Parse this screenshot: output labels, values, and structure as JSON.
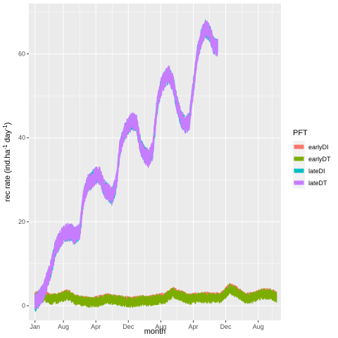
{
  "chart_data": {
    "type": "line",
    "xlabel": "month",
    "ylabel": {
      "main": "rec rate (ind.ha",
      "exp1": "-1",
      "mid": " day",
      "exp2": "-1",
      "close": ")"
    },
    "x_ticks": [
      "Jan",
      "Aug",
      "Apr",
      "Dec",
      "Aug",
      "Apr",
      "Dec",
      "Aug"
    ],
    "x_tick_months": [
      0,
      7,
      15,
      23,
      31,
      39,
      47,
      55
    ],
    "xlim_months": [
      -1.5,
      60.6
    ],
    "y_ticks": [
      "0",
      "20",
      "40",
      "60"
    ],
    "y_tick_values": [
      0,
      20,
      40,
      60
    ],
    "ylim": [
      -3.5,
      72
    ],
    "grid": true,
    "legend": {
      "title": "PFT",
      "position": "right"
    },
    "series": [
      {
        "name": "earlyDI",
        "color": "#F8766D",
        "band": 1.4,
        "points": [
          [
            0,
            2.2
          ],
          [
            2,
            2.8
          ],
          [
            4,
            1.8
          ],
          [
            6,
            2.0
          ],
          [
            8,
            2.9
          ],
          [
            10,
            1.6
          ],
          [
            12,
            1.2
          ],
          [
            14,
            1.0
          ],
          [
            16,
            1.4
          ],
          [
            18,
            1.9
          ],
          [
            20,
            1.5
          ],
          [
            22,
            1.2
          ],
          [
            24,
            1.0
          ],
          [
            26,
            1.5
          ],
          [
            28,
            1.3
          ],
          [
            30,
            1.8
          ],
          [
            32,
            2.0
          ],
          [
            34,
            3.4
          ],
          [
            36,
            2.6
          ],
          [
            38,
            1.8
          ],
          [
            40,
            2.1
          ],
          [
            42,
            2.2
          ],
          [
            44,
            2.0
          ],
          [
            46,
            2.3
          ],
          [
            48,
            4.4
          ],
          [
            50,
            3.4
          ],
          [
            52,
            2.0
          ],
          [
            54,
            2.3
          ],
          [
            56,
            3.2
          ],
          [
            58,
            3.0
          ],
          [
            59.5,
            2.4
          ]
        ]
      },
      {
        "name": "earlyDT",
        "color": "#7CAE00",
        "band": 1.6,
        "points": [
          [
            0,
            1.8
          ],
          [
            2,
            2.4
          ],
          [
            4,
            1.5
          ],
          [
            6,
            1.8
          ],
          [
            8,
            2.6
          ],
          [
            10,
            1.4
          ],
          [
            12,
            1.0
          ],
          [
            14,
            0.8
          ],
          [
            16,
            1.1
          ],
          [
            18,
            1.6
          ],
          [
            20,
            1.3
          ],
          [
            22,
            1.0
          ],
          [
            24,
            0.8
          ],
          [
            26,
            1.2
          ],
          [
            28,
            1.1
          ],
          [
            30,
            1.5
          ],
          [
            32,
            1.7
          ],
          [
            34,
            3.0
          ],
          [
            36,
            2.3
          ],
          [
            38,
            1.5
          ],
          [
            40,
            1.8
          ],
          [
            42,
            1.9
          ],
          [
            44,
            1.7
          ],
          [
            46,
            2.0
          ],
          [
            48,
            4.0
          ],
          [
            50,
            3.0
          ],
          [
            52,
            1.7
          ],
          [
            54,
            2.0
          ],
          [
            56,
            2.8
          ],
          [
            58,
            2.7
          ],
          [
            59.5,
            2.1
          ]
        ]
      },
      {
        "name": "lateDI",
        "color": "#00BFC4",
        "band": 2.6,
        "points": [
          [
            0,
            0.5
          ],
          [
            2,
            3.0
          ],
          [
            4,
            9.0
          ],
          [
            5,
            13.5
          ],
          [
            6,
            15.5
          ],
          [
            7,
            17.0
          ],
          [
            8,
            17.5
          ],
          [
            9,
            17.3
          ],
          [
            10,
            16.5
          ],
          [
            11,
            17.5
          ],
          [
            12,
            26.0
          ],
          [
            13,
            29.0
          ],
          [
            14,
            30.0
          ],
          [
            15,
            31.0
          ],
          [
            16,
            31.0
          ],
          [
            17,
            28.0
          ],
          [
            18,
            27.0
          ],
          [
            19,
            26.0
          ],
          [
            20,
            29.0
          ],
          [
            21,
            38.0
          ],
          [
            22,
            41.0
          ],
          [
            23,
            43.0
          ],
          [
            24,
            44.0
          ],
          [
            25,
            43.5
          ],
          [
            26,
            38.0
          ],
          [
            27,
            36.0
          ],
          [
            28,
            35.0
          ],
          [
            29,
            37.0
          ],
          [
            30,
            47.0
          ],
          [
            31,
            52.0
          ],
          [
            32,
            54.0
          ],
          [
            33,
            55.0
          ],
          [
            34,
            53.0
          ],
          [
            35,
            48.0
          ],
          [
            36,
            44.5
          ],
          [
            37,
            43.0
          ],
          [
            38,
            44.0
          ],
          [
            39,
            52.0
          ],
          [
            40,
            60.0
          ],
          [
            41,
            64.0
          ],
          [
            42,
            66.0
          ],
          [
            43,
            65.0
          ],
          [
            44,
            62.0
          ],
          [
            45,
            61.5
          ]
        ]
      },
      {
        "name": "lateDT",
        "color": "#C77CFF",
        "band": 2.8,
        "points": [
          [
            0,
            0.5
          ],
          [
            2,
            3.0
          ],
          [
            4,
            9.0
          ],
          [
            5,
            13.5
          ],
          [
            6,
            15.5
          ],
          [
            7,
            17.0
          ],
          [
            8,
            17.5
          ],
          [
            9,
            17.3
          ],
          [
            10,
            16.5
          ],
          [
            11,
            17.5
          ],
          [
            12,
            26.0
          ],
          [
            13,
            29.0
          ],
          [
            14,
            30.0
          ],
          [
            15,
            31.0
          ],
          [
            16,
            31.0
          ],
          [
            17,
            28.0
          ],
          [
            18,
            27.0
          ],
          [
            19,
            26.0
          ],
          [
            20,
            29.0
          ],
          [
            21,
            38.0
          ],
          [
            22,
            41.0
          ],
          [
            23,
            43.0
          ],
          [
            24,
            44.0
          ],
          [
            25,
            43.5
          ],
          [
            26,
            38.0
          ],
          [
            27,
            36.0
          ],
          [
            28,
            35.0
          ],
          [
            29,
            37.0
          ],
          [
            30,
            47.0
          ],
          [
            31,
            52.0
          ],
          [
            32,
            54.0
          ],
          [
            33,
            55.0
          ],
          [
            34,
            53.0
          ],
          [
            35,
            48.0
          ],
          [
            36,
            44.5
          ],
          [
            37,
            43.0
          ],
          [
            38,
            44.0
          ],
          [
            39,
            52.0
          ],
          [
            40,
            60.0
          ],
          [
            41,
            64.0
          ],
          [
            42,
            66.0
          ],
          [
            43,
            65.0
          ],
          [
            44,
            62.0
          ],
          [
            45,
            61.5
          ]
        ]
      }
    ]
  }
}
